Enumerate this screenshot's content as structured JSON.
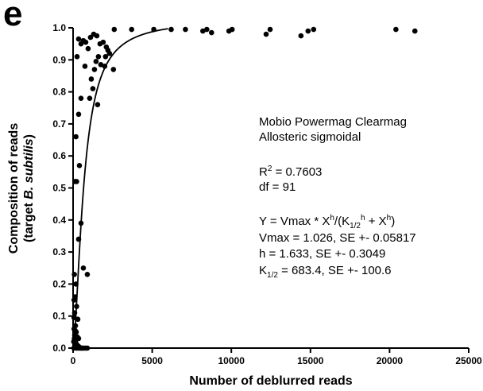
{
  "panel_letter": "e",
  "chart_data": {
    "type": "scatter",
    "xlabel": "Number of deblurred reads",
    "ylabel_line1": "Composition of reads",
    "ylabel_line2_prefix": "(target ",
    "ylabel_line2_italic": "B. subtilis",
    "ylabel_line2_suffix": ")",
    "xlim": [
      0,
      25000
    ],
    "ylim": [
      0,
      1.0
    ],
    "x_ticks": [
      0,
      5000,
      10000,
      15000,
      20000,
      25000
    ],
    "x_tick_labels": [
      "0",
      "5000",
      "10000",
      "15000",
      "20000",
      "25000"
    ],
    "y_ticks": [
      0,
      0.1,
      0.2,
      0.3,
      0.4,
      0.5,
      0.6,
      0.7,
      0.8,
      0.9,
      1.0
    ],
    "y_tick_labels": [
      "0.0",
      "0.1",
      "0.2",
      "0.3",
      "0.4",
      "0.5",
      "0.6",
      "0.7",
      "0.8",
      "0.9",
      "1.0"
    ],
    "grid": false,
    "marker_color": "#000000",
    "fit": {
      "model": "allosteric sigmoidal",
      "Vmax": 1.026,
      "h": 1.633,
      "K_half": 683.4
    },
    "points": [
      [
        2600,
        0.995
      ],
      [
        3700,
        0.995
      ],
      [
        5100,
        0.995
      ],
      [
        6200,
        0.995
      ],
      [
        7100,
        0.995
      ],
      [
        8200,
        0.99
      ],
      [
        8450,
        0.995
      ],
      [
        8750,
        0.985
      ],
      [
        9850,
        0.99
      ],
      [
        10050,
        0.995
      ],
      [
        12200,
        0.98
      ],
      [
        12450,
        0.995
      ],
      [
        14400,
        0.975
      ],
      [
        14850,
        0.99
      ],
      [
        15200,
        0.995
      ],
      [
        20400,
        0.995
      ],
      [
        21600,
        0.99
      ],
      [
        1100,
        0.97
      ],
      [
        1300,
        0.98
      ],
      [
        1500,
        0.975
      ],
      [
        1700,
        0.95
      ],
      [
        1900,
        0.955
      ],
      [
        2100,
        0.94
      ],
      [
        2200,
        0.93
      ],
      [
        2300,
        0.92
      ],
      [
        2050,
        0.91
      ],
      [
        1600,
        0.91
      ],
      [
        1450,
        0.895
      ],
      [
        1750,
        0.885
      ],
      [
        2000,
        0.88
      ],
      [
        1350,
        0.87
      ],
      [
        2550,
        0.87
      ],
      [
        1150,
        0.84
      ],
      [
        1250,
        0.81
      ],
      [
        950,
        0.935
      ],
      [
        800,
        0.955
      ],
      [
        650,
        0.96
      ],
      [
        500,
        0.95
      ],
      [
        350,
        0.965
      ],
      [
        250,
        0.91
      ],
      [
        750,
        0.88
      ],
      [
        1050,
        0.78
      ],
      [
        1550,
        0.76
      ],
      [
        500,
        0.78
      ],
      [
        350,
        0.73
      ],
      [
        180,
        0.66
      ],
      [
        400,
        0.57
      ],
      [
        220,
        0.52
      ],
      [
        500,
        0.39
      ],
      [
        350,
        0.34
      ],
      [
        120,
        0.52
      ],
      [
        650,
        0.25
      ],
      [
        900,
        0.23
      ],
      [
        80,
        0.23
      ],
      [
        180,
        0.2
      ],
      [
        120,
        0.16
      ],
      [
        60,
        0.15
      ],
      [
        220,
        0.13
      ],
      [
        100,
        0.11
      ],
      [
        300,
        0.09
      ],
      [
        150,
        0.07
      ],
      [
        60,
        0.06
      ],
      [
        200,
        0.05
      ],
      [
        100,
        0.04
      ],
      [
        350,
        0.03
      ],
      [
        150,
        0.02
      ],
      [
        250,
        0.01
      ],
      [
        80,
        0.03
      ],
      [
        120,
        0.005
      ],
      [
        200,
        0.0
      ],
      [
        300,
        0.0
      ],
      [
        400,
        0.0
      ],
      [
        500,
        0.0
      ],
      [
        600,
        0.0
      ],
      [
        700,
        0.0
      ],
      [
        800,
        0.0
      ],
      [
        900,
        0.0
      ],
      [
        50,
        0.0
      ],
      [
        350,
        0.005
      ],
      [
        550,
        0.0
      ],
      [
        180,
        0.015
      ],
      [
        40,
        0.02
      ],
      [
        60,
        0.095
      ],
      [
        130,
        0.055
      ],
      [
        260,
        0.035
      ],
      [
        420,
        0.002
      ]
    ]
  },
  "annotations": {
    "line1": "Mobio Powermag Clearmag",
    "line2": "Allosteric sigmoidal",
    "r2_prefix": "R",
    "r2_sup": "2",
    "r2_suffix": " = 0.7603",
    "df": "df = 91",
    "eq_a": "Y = Vmax * X",
    "eq_sup1": "h",
    "eq_b": "/(K",
    "eq_sub": "1/2",
    "eq_sup2": "h",
    "eq_c": " + X",
    "eq_sup3": "h",
    "eq_d": ")",
    "vmax": "Vmax = 1.026, SE +- 0.05817",
    "h": "h = 1.633, SE +- 0.3049",
    "k_a": "K",
    "k_sub": "1/2",
    "k_b": " = 683.4, SE +- 100.6"
  }
}
